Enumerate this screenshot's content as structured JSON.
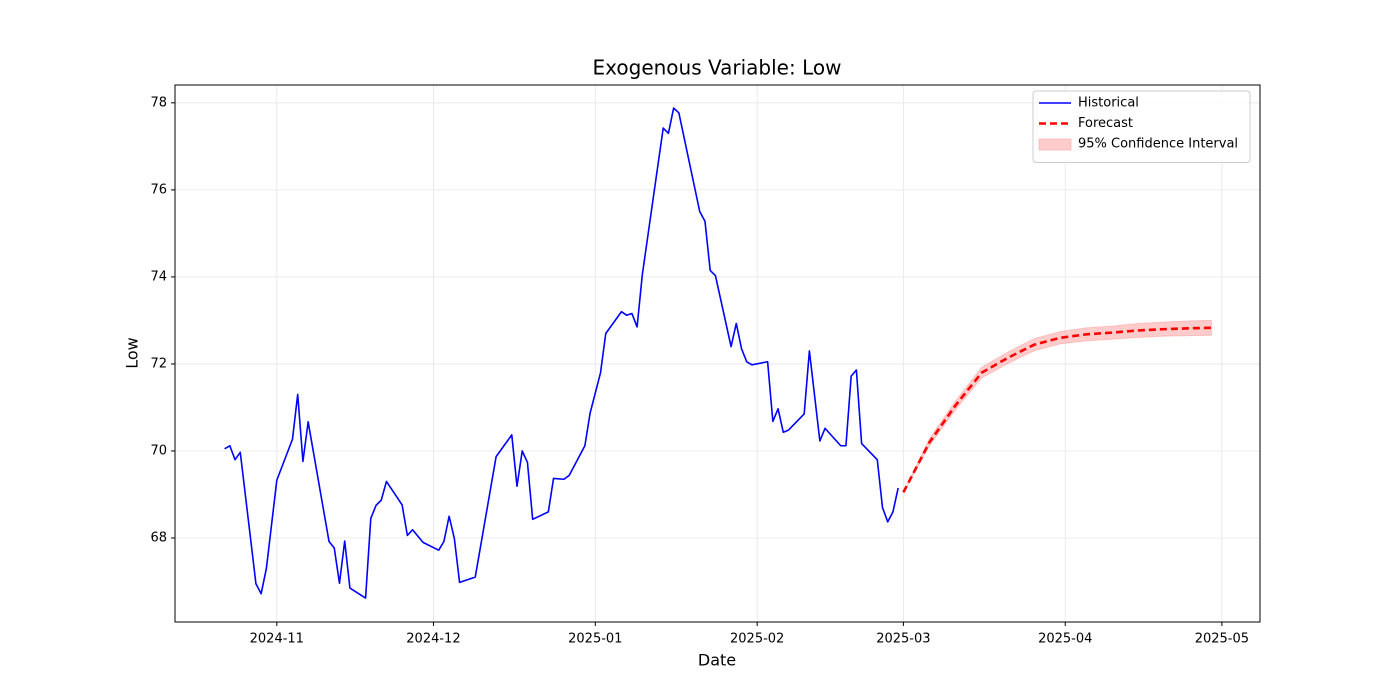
{
  "chart_data": {
    "type": "line",
    "title": "Exogenous Variable: Low",
    "x_label": "Date",
    "y_label": "Low",
    "xlim": [
      -19.5,
      188.3
    ],
    "xticks": [
      {
        "value": 0,
        "label": "2024-11"
      },
      {
        "value": 30,
        "label": "2024-12"
      },
      {
        "value": 61,
        "label": "2025-01"
      },
      {
        "value": 92,
        "label": "2025-02"
      },
      {
        "value": 120,
        "label": "2025-03"
      },
      {
        "value": 151,
        "label": "2025-04"
      },
      {
        "value": 181,
        "label": "2025-05"
      }
    ],
    "ylim": [
      66.07,
      78.41
    ],
    "yticks": [
      68,
      70,
      72,
      74,
      76,
      78
    ],
    "grid": true,
    "legend": "upper right",
    "series": [
      {
        "name": "Historical",
        "color": "#0000ff",
        "dash": false,
        "x": [
          -10,
          -9,
          -8,
          -7,
          -4,
          -3,
          -2,
          0,
          3,
          4,
          5,
          6,
          10,
          11,
          12,
          13,
          14,
          17,
          18,
          19,
          20,
          21,
          24,
          25,
          26,
          28,
          31,
          32,
          33,
          34,
          35,
          38,
          42,
          45,
          46,
          47,
          48,
          49,
          52,
          53,
          55,
          56,
          59,
          60,
          62,
          63,
          66,
          67,
          68,
          69,
          70,
          74,
          75,
          76,
          77,
          81,
          82,
          83,
          84,
          87,
          88,
          89,
          90,
          91,
          94,
          95,
          96,
          97,
          98,
          101,
          102,
          104,
          105,
          108,
          109,
          110,
          111,
          112,
          115,
          116,
          117,
          118,
          119
        ],
        "values": [
          70.05,
          70.12,
          69.8,
          69.97,
          66.95,
          66.72,
          67.3,
          69.33,
          70.27,
          71.3,
          69.76,
          70.67,
          67.92,
          67.77,
          66.96,
          67.93,
          66.85,
          66.62,
          68.45,
          68.75,
          68.87,
          69.3,
          68.76,
          68.06,
          68.19,
          67.9,
          67.72,
          67.92,
          68.5,
          67.99,
          66.98,
          67.1,
          69.87,
          70.37,
          69.19,
          70.0,
          69.74,
          68.43,
          68.6,
          69.37,
          69.35,
          69.44,
          70.12,
          70.87,
          71.8,
          72.7,
          73.2,
          73.12,
          73.16,
          72.85,
          74.05,
          77.42,
          77.3,
          77.88,
          77.77,
          75.5,
          75.28,
          74.15,
          74.03,
          72.4,
          72.93,
          72.35,
          72.05,
          71.98,
          72.05,
          70.68,
          70.97,
          70.43,
          70.48,
          70.85,
          72.3,
          70.23,
          70.52,
          70.12,
          70.12,
          71.72,
          71.86,
          70.17,
          69.8,
          68.7,
          68.37,
          68.6,
          69.15
        ]
      },
      {
        "name": "Forecast",
        "color": "#ff0000",
        "dash": true,
        "x": [
          120,
          125,
          130,
          135,
          140,
          145,
          150,
          155,
          160,
          165,
          170,
          175,
          179
        ],
        "values": [
          69.05,
          70.2,
          71.05,
          71.8,
          72.14,
          72.44,
          72.6,
          72.68,
          72.72,
          72.77,
          72.8,
          72.82,
          72.83
        ]
      }
    ],
    "interval": {
      "name": "95% Confidence Interval",
      "color": "#ff9999",
      "x": [
        120,
        125,
        130,
        135,
        140,
        145,
        150,
        155,
        160,
        165,
        170,
        175,
        179
      ],
      "lower": [
        69.05,
        70.12,
        70.95,
        71.68,
        72.01,
        72.3,
        72.46,
        72.53,
        72.57,
        72.61,
        72.64,
        72.65,
        72.66
      ],
      "upper": [
        69.05,
        70.28,
        71.15,
        71.92,
        72.27,
        72.58,
        72.74,
        72.83,
        72.87,
        72.93,
        72.96,
        72.99,
        73.0
      ]
    }
  }
}
